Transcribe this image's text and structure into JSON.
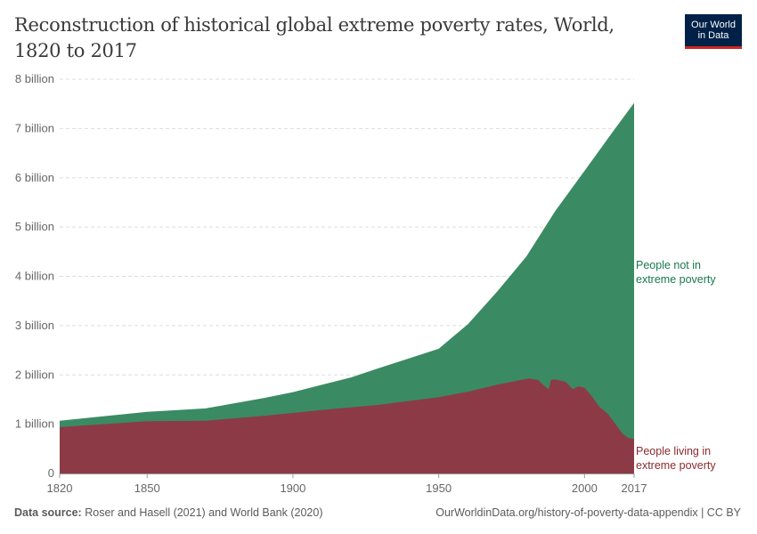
{
  "title": "Reconstruction of historical global extreme poverty rates, World, 1820 to 2017",
  "logo": {
    "line1": "Our World",
    "line2": "in Data"
  },
  "footer": {
    "source_label": "Data source:",
    "source_text": "Roser and Hasell (2021) and World Bank (2020)",
    "url_license": "OurWorldinData.org/history-of-poverty-data-appendix | CC BY"
  },
  "chart_data": {
    "type": "area",
    "stacked": true,
    "title": "Reconstruction of historical global extreme poverty rates, World, 1820 to 2017",
    "xlim": [
      1820,
      2017
    ],
    "ylim": [
      0,
      8
    ],
    "y_unit": "billion",
    "x_ticks": [
      "1820",
      "1850",
      "1900",
      "1950",
      "2000",
      "2017"
    ],
    "y_ticks": [
      "0",
      "1 billion",
      "2 billion",
      "3 billion",
      "4 billion",
      "5 billion",
      "6 billion",
      "7 billion",
      "8 billion"
    ],
    "grid": "horizontal dashed",
    "legend": "right, inline labels",
    "series": [
      {
        "name": "People living in extreme poverty",
        "color": "#8c3b46",
        "label_color": "#8c2a2f",
        "points": [
          [
            1820,
            0.94
          ],
          [
            1850,
            1.06
          ],
          [
            1870,
            1.07
          ],
          [
            1890,
            1.17
          ],
          [
            1910,
            1.29
          ],
          [
            1929,
            1.39
          ],
          [
            1950,
            1.55
          ],
          [
            1960,
            1.66
          ],
          [
            1970,
            1.8
          ],
          [
            1981,
            1.93
          ],
          [
            1984,
            1.9
          ],
          [
            1986,
            1.79
          ],
          [
            1987.7,
            1.71
          ],
          [
            1988.5,
            1.9
          ],
          [
            1990,
            1.91
          ],
          [
            1993.5,
            1.86
          ],
          [
            1996,
            1.71
          ],
          [
            1998,
            1.77
          ],
          [
            2000,
            1.74
          ],
          [
            2002.5,
            1.57
          ],
          [
            2005,
            1.36
          ],
          [
            2008,
            1.21
          ],
          [
            2009,
            1.13
          ],
          [
            2011,
            0.97
          ],
          [
            2013,
            0.81
          ],
          [
            2015,
            0.72
          ],
          [
            2017,
            0.7
          ]
        ]
      },
      {
        "name": "People not in extreme poverty",
        "color": "#3a8b63",
        "label_color": "#18794e",
        "total_population_points": [
          [
            1820,
            1.07
          ],
          [
            1850,
            1.25
          ],
          [
            1870,
            1.32
          ],
          [
            1890,
            1.53
          ],
          [
            1900,
            1.65
          ],
          [
            1910,
            1.8
          ],
          [
            1920,
            1.95
          ],
          [
            1929,
            2.13
          ],
          [
            1950,
            2.53
          ],
          [
            1960,
            3.03
          ],
          [
            1970,
            3.69
          ],
          [
            1980,
            4.4
          ],
          [
            1990,
            5.33
          ],
          [
            2000,
            6.14
          ],
          [
            2010,
            6.96
          ],
          [
            2017,
            7.52
          ]
        ]
      }
    ]
  }
}
